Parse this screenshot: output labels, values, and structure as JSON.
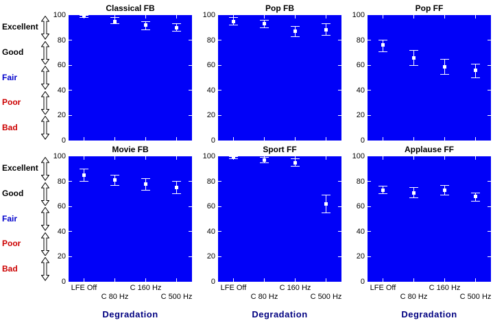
{
  "figure": {
    "bg_color": "#ffffff",
    "plot_bg_color": "#0101f8",
    "marker_color": "#ffffff",
    "errorbar_color": "#ffffff",
    "tick_color": "#ffffff",
    "title_color": "#000000",
    "axis_text_color": "#000000",
    "xlabel": "Degradation",
    "xlabel_color": "#000080",
    "x_tick_labels": [
      "LFE Off",
      "C 80 Hz",
      "C 160 Hz",
      "C 500 Hz"
    ],
    "y_ticks": [
      0,
      20,
      40,
      60,
      80,
      100
    ],
    "quality_scale": [
      {
        "label": "Excellent",
        "color": "#000000",
        "band_low": 80,
        "band_high": 100
      },
      {
        "label": "Good",
        "color": "#000000",
        "band_low": 60,
        "band_high": 80
      },
      {
        "label": "Fair",
        "color": "#0000cc",
        "band_low": 40,
        "band_high": 60
      },
      {
        "label": "Poor",
        "color": "#cc0000",
        "band_low": 20,
        "band_high": 40
      },
      {
        "label": "Bad",
        "color": "#cc0000",
        "band_low": 0,
        "band_high": 20
      }
    ]
  },
  "chart_data": [
    {
      "type": "scatter",
      "style": "errorbar",
      "marker": "square",
      "title": "Classical FB",
      "row": 0,
      "col": 0,
      "categories": [
        "LFE Off",
        "C 80 Hz",
        "C 160 Hz",
        "C 500 Hz"
      ],
      "values": [
        100,
        95,
        92,
        90
      ],
      "ci_low": [
        98,
        93,
        88,
        87
      ],
      "ci_high": [
        100,
        98,
        95,
        93
      ],
      "ylim": [
        0,
        100
      ],
      "grid": false
    },
    {
      "type": "scatter",
      "style": "errorbar",
      "marker": "square",
      "title": "Pop FB",
      "row": 0,
      "col": 1,
      "categories": [
        "LFE Off",
        "C 80 Hz",
        "C 160 Hz",
        "C 500 Hz"
      ],
      "values": [
        95,
        93,
        87,
        88
      ],
      "ci_low": [
        92,
        90,
        83,
        84
      ],
      "ci_high": [
        98,
        96,
        91,
        93
      ],
      "ylim": [
        0,
        100
      ],
      "grid": false
    },
    {
      "type": "scatter",
      "style": "errorbar",
      "marker": "square",
      "title": "Pop FF",
      "row": 0,
      "col": 2,
      "categories": [
        "LFE Off",
        "C 80 Hz",
        "C 160 Hz",
        "C 500 Hz"
      ],
      "values": [
        76,
        66,
        59,
        56
      ],
      "ci_low": [
        71,
        60,
        53,
        50
      ],
      "ci_high": [
        80,
        72,
        65,
        61
      ],
      "ylim": [
        0,
        100
      ],
      "grid": false
    },
    {
      "type": "scatter",
      "style": "errorbar",
      "marker": "square",
      "title": "Movie FB",
      "row": 1,
      "col": 0,
      "categories": [
        "LFE Off",
        "C 80 Hz",
        "C 160 Hz",
        "C 500 Hz"
      ],
      "values": [
        85,
        81,
        78,
        75
      ],
      "ci_low": [
        80,
        77,
        73,
        70
      ],
      "ci_high": [
        90,
        85,
        82,
        80
      ],
      "ylim": [
        0,
        100
      ],
      "grid": false
    },
    {
      "type": "scatter",
      "style": "errorbar",
      "marker": "square",
      "title": "Sport FF",
      "row": 1,
      "col": 1,
      "categories": [
        "LFE Off",
        "C 80 Hz",
        "C 160 Hz",
        "C 500 Hz"
      ],
      "values": [
        100,
        97,
        95,
        62
      ],
      "ci_low": [
        98,
        95,
        92,
        55
      ],
      "ci_high": [
        100,
        99,
        98,
        69
      ],
      "ylim": [
        0,
        100
      ],
      "grid": false
    },
    {
      "type": "scatter",
      "style": "errorbar",
      "marker": "square",
      "title": "Applause FF",
      "row": 1,
      "col": 2,
      "categories": [
        "LFE Off",
        "C 80 Hz",
        "C 160 Hz",
        "C 500 Hz"
      ],
      "values": [
        73,
        71,
        73,
        68
      ],
      "ci_low": [
        70,
        67,
        69,
        64
      ],
      "ci_high": [
        76,
        75,
        77,
        71
      ],
      "ylim": [
        0,
        100
      ],
      "grid": false
    }
  ]
}
